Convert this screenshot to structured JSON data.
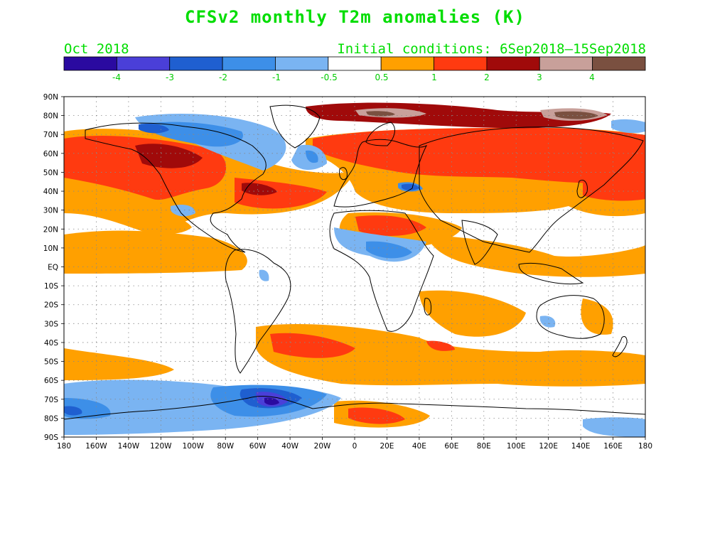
{
  "title": "CFSv2 monthly T2m anomalies (K)",
  "month": "Oct 2018",
  "initial_conditions": "Initial conditions: 6Sep2018–15Sep2018",
  "colorbar": {
    "colors": [
      "#2a0aa0",
      "#4a3fd8",
      "#1f5fd0",
      "#3d8fe8",
      "#7ab4f2",
      "#ffffff",
      "#ffa000",
      "#ff3a10",
      "#a00a0a",
      "#c8a09a",
      "#7a5040"
    ],
    "labels": [
      "-4",
      "-3",
      "-2",
      "-1",
      "-0.5",
      "0.5",
      "1",
      "2",
      "3",
      "4"
    ]
  },
  "lat_labels": [
    "90N",
    "80N",
    "70N",
    "60N",
    "50N",
    "40N",
    "30N",
    "20N",
    "10N",
    "EQ",
    "10S",
    "20S",
    "30S",
    "40S",
    "50S",
    "60S",
    "70S",
    "80S",
    "90S"
  ],
  "lon_labels": [
    "180",
    "160W",
    "140W",
    "120W",
    "100W",
    "80W",
    "60W",
    "40W",
    "20W",
    "0",
    "20E",
    "40E",
    "60E",
    "80E",
    "100E",
    "120E",
    "140E",
    "160E",
    "180"
  ]
}
